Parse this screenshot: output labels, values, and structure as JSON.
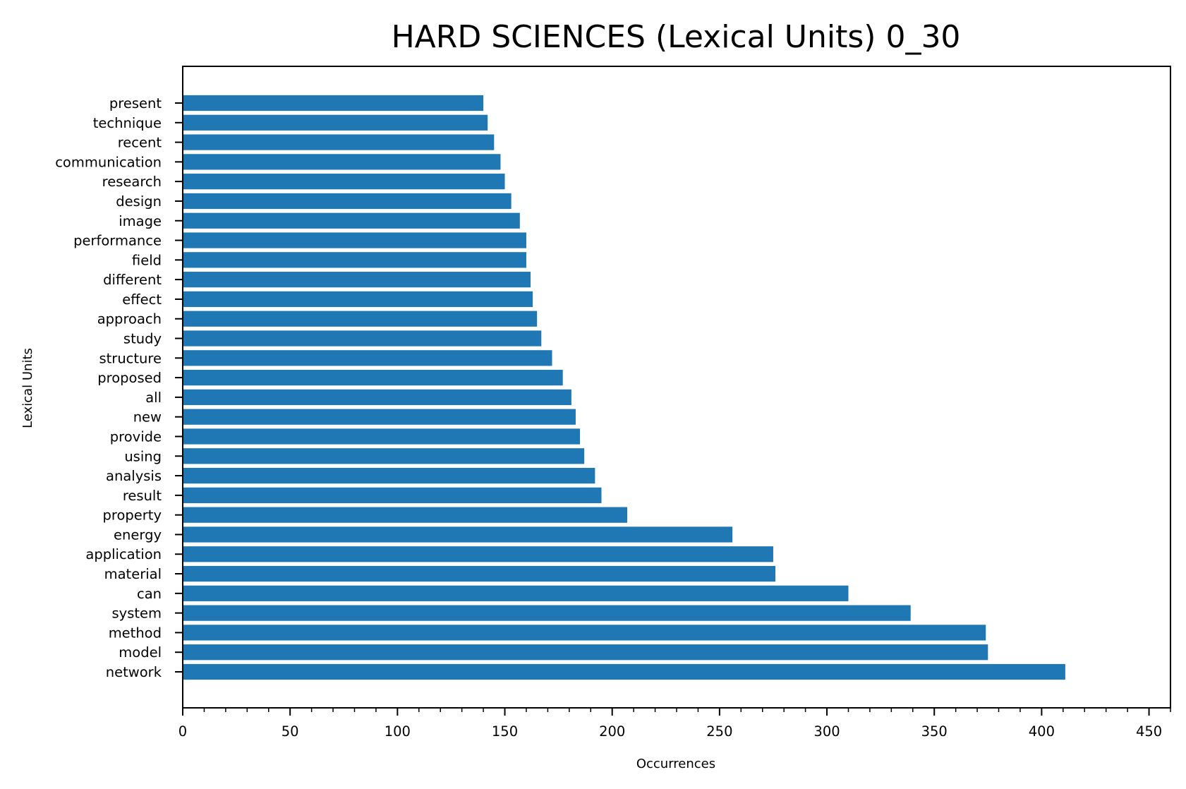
{
  "chart_data": {
    "type": "bar",
    "orientation": "horizontal",
    "title": "HARD SCIENCES (Lexical Units) 0_30",
    "xlabel": "Occurrences",
    "ylabel": "Lexical Units",
    "xlim": [
      0,
      460
    ],
    "xticks": [
      0,
      50,
      100,
      150,
      200,
      250,
      300,
      350,
      400,
      450
    ],
    "minor_tick_step": 10,
    "grid": false,
    "bar_color": "#1f77b4",
    "categories": [
      "network",
      "model",
      "method",
      "system",
      "can",
      "material",
      "application",
      "energy",
      "property",
      "result",
      "analysis",
      "using",
      "provide",
      "new",
      "all",
      "proposed",
      "structure",
      "study",
      "approach",
      "effect",
      "different",
      "field",
      "performance",
      "image",
      "design",
      "research",
      "communication",
      "recent",
      "technique",
      "present"
    ],
    "values": [
      411,
      375,
      374,
      339,
      310,
      276,
      275,
      256,
      207,
      195,
      192,
      187,
      185,
      183,
      181,
      177,
      172,
      167,
      165,
      163,
      162,
      160,
      160,
      157,
      153,
      150,
      148,
      145,
      142,
      140
    ]
  }
}
